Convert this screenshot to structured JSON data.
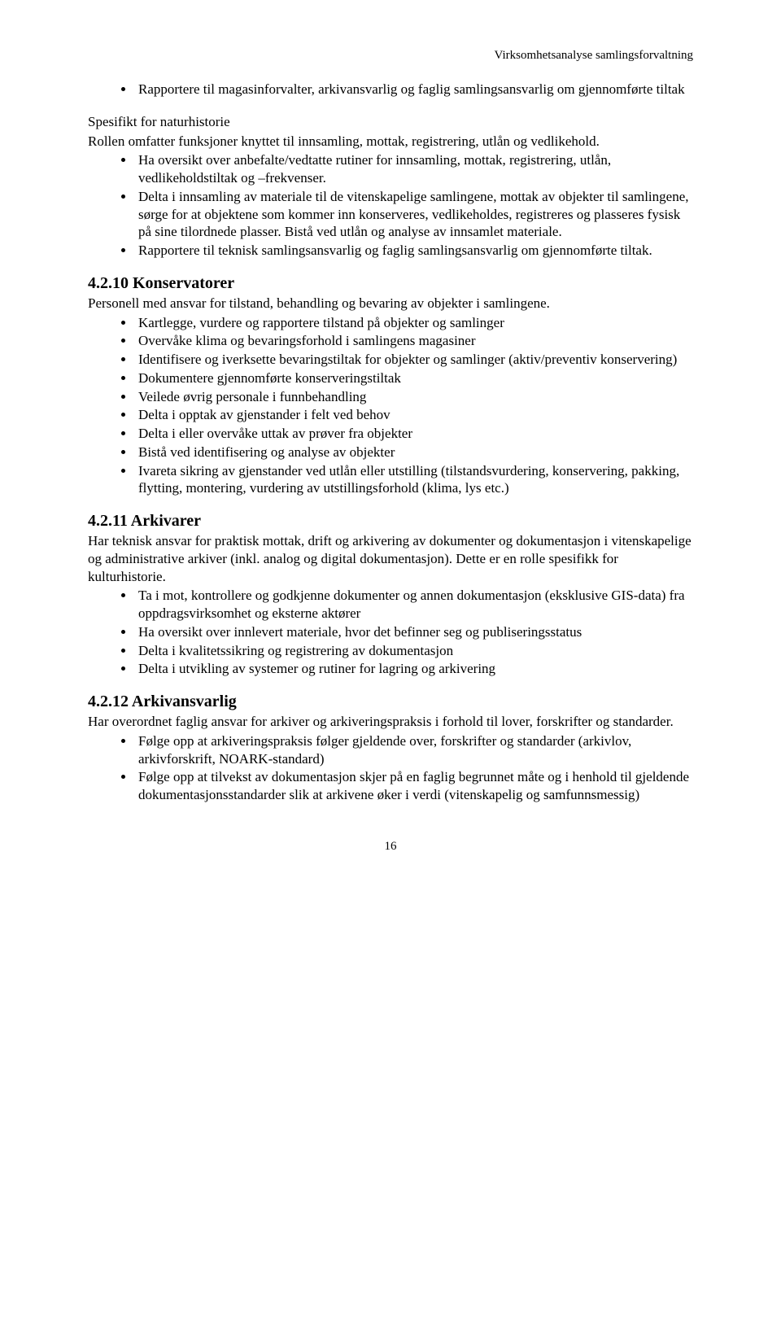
{
  "header": {
    "running_title": "Virksomhetsanalyse samlingsforvaltning"
  },
  "intro": {
    "bullets": [
      "Rapportere til magasinforvalter, arkivansvarlig og faglig samlingsansvarlig om gjennomførte tiltak"
    ],
    "spesifikt_title": "Spesifikt for naturhistorie",
    "spesifikt_body": "Rollen omfatter funksjoner knyttet til innsamling, mottak, registrering, utlån og vedlikehold.",
    "bullets2": [
      "Ha oversikt over anbefalte/vedtatte rutiner for innsamling, mottak, registrering, utlån, vedlikeholdstiltak og –frekvenser.",
      "Delta i innsamling av materiale til de vitenskapelige samlingene, mottak av objekter til samlingene, sørge for at objektene som kommer inn konserveres, vedlikeholdes, registreres og plasseres fysisk på sine tilordnede plasser. Bistå ved utlån og analyse av innsamlet materiale.",
      "Rapportere til teknisk samlingsansvarlig og faglig samlingsansvarlig om gjennomførte tiltak."
    ]
  },
  "sec_4_2_10": {
    "heading": "4.2.10 Konservatorer",
    "body": "Personell med ansvar for tilstand, behandling og bevaring av objekter i samlingene.",
    "bullets": [
      "Kartlegge, vurdere og rapportere tilstand på objekter og samlinger",
      "Overvåke klima og bevaringsforhold i samlingens magasiner",
      "Identifisere og iverksette bevaringstiltak for objekter og samlinger (aktiv/preventiv konservering)",
      "Dokumentere gjennomførte konserveringstiltak",
      "Veilede øvrig personale i funnbehandling",
      "Delta i opptak av gjenstander i felt ved behov",
      "Delta i eller overvåke uttak av prøver fra objekter",
      "Bistå ved identifisering og analyse av objekter",
      "Ivareta sikring av gjenstander ved utlån eller utstilling (tilstandsvurdering, konservering, pakking, flytting, montering, vurdering av utstillingsforhold (klima, lys etc.)"
    ]
  },
  "sec_4_2_11": {
    "heading": "4.2.11 Arkivarer",
    "body": "Har teknisk ansvar for praktisk mottak, drift og arkivering av dokumenter og dokumentasjon i vitenskapelige og administrative arkiver (inkl. analog og digital dokumentasjon).  Dette er en rolle spesifikk for kulturhistorie.",
    "bullets": [
      "Ta i mot, kontrollere og godkjenne dokumenter og annen dokumentasjon (eksklusive GIS-data) fra oppdragsvirksomhet og eksterne aktører",
      "Ha oversikt over innlevert materiale, hvor det befinner seg og publiseringsstatus",
      "Delta i kvalitetssikring og registrering av dokumentasjon",
      "Delta i utvikling av systemer og rutiner for lagring og arkivering"
    ]
  },
  "sec_4_2_12": {
    "heading": "4.2.12 Arkivansvarlig",
    "body": "Har overordnet faglig ansvar for arkiver og arkiveringspraksis i forhold til lover, forskrifter og standarder.",
    "bullets": [
      "Følge opp at arkiveringspraksis følger gjeldende over, forskrifter og standarder (arkivlov, arkivforskrift, NOARK-standard)",
      "Følge opp at tilvekst av dokumentasjon skjer på en faglig begrunnet måte og i henhold til gjeldende dokumentasjonsstandarder slik at arkivene øker i verdi (vitenskapelig og samfunnsmessig)"
    ]
  },
  "footer": {
    "page_number": "16"
  }
}
